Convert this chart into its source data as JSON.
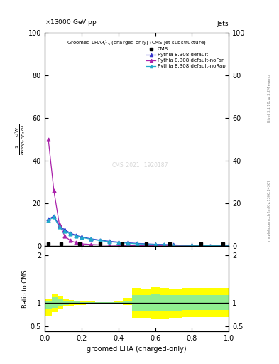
{
  "title_energy": "13000 GeV pp",
  "title_right": "Jets",
  "plot_title": "Groomed LHA$\\lambda^{1}_{0.5}$ (charged only) (CMS jet substructure)",
  "xlabel": "groomed LHA (charged-only)",
  "ylabel_ratio": "Ratio to CMS",
  "watermark": "CMS_2021_I1920187",
  "rivet_label": "Rivet 3.1.10, ≥ 3.2M events",
  "mcplots_label": "mcplots.cern.ch [arXiv:1306.3436]",
  "ylim_main": [
    0,
    100
  ],
  "ylim_ratio": [
    0.4,
    2.2
  ],
  "xlim": [
    0.0,
    1.0
  ],
  "pythia_default_x": [
    0.02,
    0.05,
    0.08,
    0.11,
    0.14,
    0.17,
    0.2,
    0.25,
    0.3,
    0.35,
    0.4,
    0.45,
    0.5,
    0.55,
    0.6,
    0.65,
    0.7,
    0.8,
    0.9,
    1.0
  ],
  "pythia_default_y": [
    12.5,
    14.0,
    9.5,
    7.5,
    6.0,
    5.0,
    4.2,
    3.4,
    2.7,
    2.2,
    1.8,
    1.5,
    1.2,
    1.0,
    0.8,
    0.7,
    0.5,
    0.3,
    0.15,
    0.05
  ],
  "pythia_nofsr_x": [
    0.02,
    0.05,
    0.08,
    0.11,
    0.14,
    0.17,
    0.2,
    0.25,
    0.3,
    0.35,
    0.4,
    0.45,
    0.5,
    0.55,
    0.6,
    0.65,
    0.7,
    0.8,
    0.9,
    1.0
  ],
  "pythia_nofsr_y": [
    50.0,
    26.0,
    10.0,
    4.5,
    2.5,
    1.5,
    1.0,
    0.7,
    0.5,
    0.4,
    0.3,
    0.2,
    0.15,
    0.1,
    0.08,
    0.06,
    0.04,
    0.02,
    0.01,
    0.005
  ],
  "pythia_norap_x": [
    0.02,
    0.05,
    0.08,
    0.11,
    0.14,
    0.17,
    0.2,
    0.25,
    0.3,
    0.35,
    0.4,
    0.45,
    0.5,
    0.55,
    0.6,
    0.65,
    0.7,
    0.8,
    0.9,
    1.0
  ],
  "pythia_norap_y": [
    12.0,
    13.5,
    9.0,
    7.0,
    5.5,
    4.8,
    4.0,
    3.2,
    2.5,
    2.0,
    1.6,
    1.3,
    1.0,
    0.85,
    0.65,
    0.55,
    0.4,
    0.25,
    0.12,
    0.04
  ],
  "cms_main_x": [
    0.02,
    0.09,
    0.19,
    0.3,
    0.42,
    0.55,
    0.68,
    0.85,
    0.97
  ],
  "cms_main_y": [
    1.0,
    1.0,
    1.0,
    1.0,
    1.0,
    1.0,
    1.0,
    1.0,
    1.0
  ],
  "pythia_default_color": "#3333cc",
  "pythia_nofsr_color": "#aa22aa",
  "pythia_norap_color": "#22aacc",
  "ratio_x_edges": [
    0.0,
    0.04,
    0.07,
    0.1,
    0.13,
    0.16,
    0.19,
    0.225,
    0.275,
    0.325,
    0.375,
    0.425,
    0.475,
    0.525,
    0.575,
    0.625,
    0.675,
    0.75,
    0.85,
    1.0
  ],
  "band_yellow_lower": [
    0.73,
    0.8,
    0.88,
    0.92,
    0.94,
    0.95,
    0.96,
    0.97,
    0.97,
    0.97,
    0.97,
    0.96,
    0.68,
    0.68,
    0.65,
    0.67,
    0.68,
    0.7,
    0.7
  ],
  "band_yellow_upper": [
    1.08,
    1.2,
    1.13,
    1.09,
    1.06,
    1.05,
    1.04,
    1.03,
    1.02,
    1.02,
    1.05,
    1.1,
    1.32,
    1.3,
    1.34,
    1.32,
    1.3,
    1.32,
    1.32
  ],
  "band_green_lower": [
    0.87,
    0.9,
    0.93,
    0.96,
    0.97,
    0.97,
    0.98,
    0.98,
    0.99,
    0.99,
    0.98,
    0.97,
    0.83,
    0.84,
    0.82,
    0.83,
    0.84,
    0.85,
    0.85
  ],
  "band_green_upper": [
    1.03,
    1.12,
    1.07,
    1.04,
    1.03,
    1.03,
    1.02,
    1.01,
    1.01,
    1.01,
    1.02,
    1.04,
    1.17,
    1.16,
    1.18,
    1.17,
    1.16,
    1.17,
    1.17
  ]
}
